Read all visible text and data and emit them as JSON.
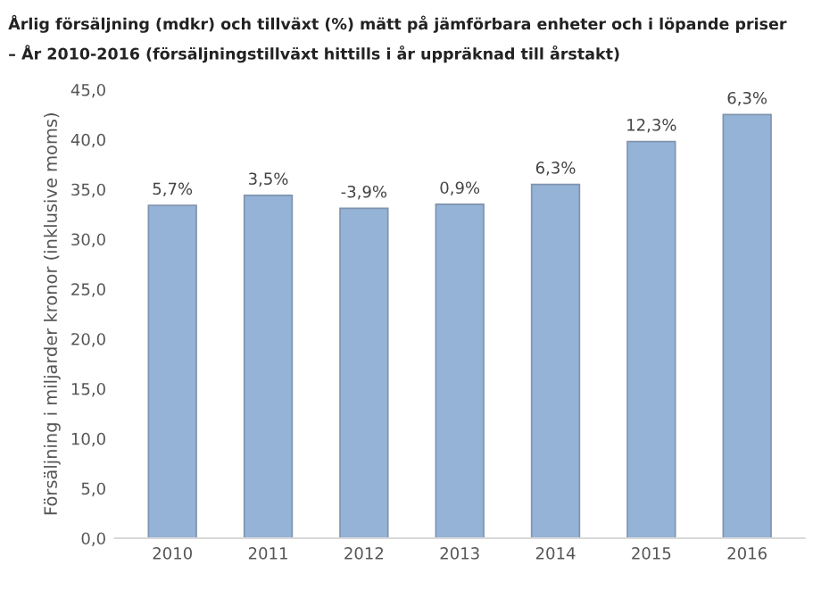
{
  "chart_data": {
    "type": "bar",
    "title": "Årlig försäljning (mdkr) och tillväxt (%) mätt på jämförbara enheter och i löpande priser",
    "subtitle": "– År 2010-2016 (försäljningstillväxt hittills i år uppräknad till årstakt)",
    "ylabel": "Försäljning i miljarder kronor (inklusive moms)",
    "categories": [
      "2010",
      "2011",
      "2012",
      "2013",
      "2014",
      "2015",
      "2016"
    ],
    "values": [
      33.4,
      34.4,
      33.1,
      33.5,
      35.5,
      39.8,
      42.5
    ],
    "annotations": [
      {
        "text": "5,7%",
        "x": "2010",
        "y": 33.4
      },
      {
        "text": "3,5%",
        "x": "2011",
        "y": 34.4
      },
      {
        "text": "-3,9%",
        "x": "2012",
        "y": 33.1
      },
      {
        "text": "0,9%",
        "x": "2013",
        "y": 33.5
      },
      {
        "text": "6,3%",
        "x": "2014",
        "y": 35.5
      },
      {
        "text": "12,3%",
        "x": "2015",
        "y": 39.8
      },
      {
        "text": "6,3%",
        "x": "2016",
        "y": 42.5
      }
    ],
    "color": "#95b3d7",
    "ylim": [
      0,
      45
    ],
    "yticks": [
      {
        "value": 0,
        "label": "0,0"
      },
      {
        "value": 5,
        "label": "5,0"
      },
      {
        "value": 10,
        "label": "10,0"
      },
      {
        "value": 15,
        "label": "15,0"
      },
      {
        "value": 20,
        "label": "20,0"
      },
      {
        "value": 25,
        "label": "25,0"
      },
      {
        "value": 30,
        "label": "30,0"
      },
      {
        "value": 35,
        "label": "35,0"
      },
      {
        "value": 40,
        "label": "40,0"
      },
      {
        "value": 45,
        "label": "45,0"
      }
    ],
    "grid": false
  }
}
